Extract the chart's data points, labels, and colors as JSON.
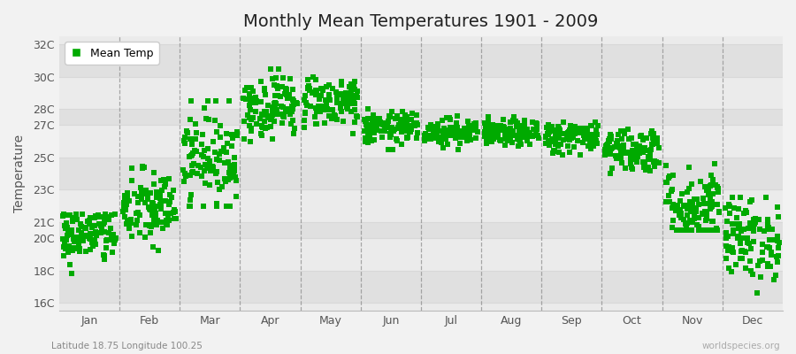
{
  "title": "Monthly Mean Temperatures 1901 - 2009",
  "ylabel": "Temperature",
  "subtitle": "Latitude 18.75 Longitude 100.25",
  "watermark": "worldspecies.org",
  "legend_label": "Mean Temp",
  "ytick_labels": [
    "16C",
    "18C",
    "20C",
    "21C",
    "23C",
    "25C",
    "27C",
    "28C",
    "30C",
    "32C"
  ],
  "ytick_values": [
    16,
    18,
    20,
    21,
    23,
    25,
    27,
    28,
    30,
    32
  ],
  "ylim": [
    15.5,
    32.5
  ],
  "months": [
    "Jan",
    "Feb",
    "Mar",
    "Apr",
    "May",
    "Jun",
    "Jul",
    "Aug",
    "Sep",
    "Oct",
    "Nov",
    "Dec"
  ],
  "dot_color": "#00aa00",
  "background_color": "#f2f2f2",
  "plot_bg_color": "#ebebeb",
  "alt_band_color": "#e0e0e0",
  "grid_color": "#d8d8d8",
  "vline_color": "#888888",
  "n_years": 109,
  "monthly_means": [
    20.2,
    21.8,
    25.0,
    28.2,
    28.5,
    26.8,
    26.6,
    26.5,
    26.3,
    25.5,
    22.0,
    20.0
  ],
  "monthly_stds": [
    0.9,
    1.2,
    1.5,
    1.0,
    0.8,
    0.5,
    0.4,
    0.4,
    0.5,
    0.7,
    1.2,
    1.3
  ],
  "monthly_mins": [
    17.5,
    18.5,
    22.0,
    26.0,
    26.5,
    25.5,
    25.5,
    25.5,
    25.0,
    24.0,
    20.5,
    15.8
  ],
  "monthly_maxs": [
    21.5,
    24.5,
    28.5,
    30.5,
    30.0,
    28.0,
    27.8,
    27.8,
    27.5,
    27.2,
    25.0,
    22.5
  ],
  "title_fontsize": 14,
  "label_fontsize": 10,
  "tick_fontsize": 9,
  "marker_size": 5
}
